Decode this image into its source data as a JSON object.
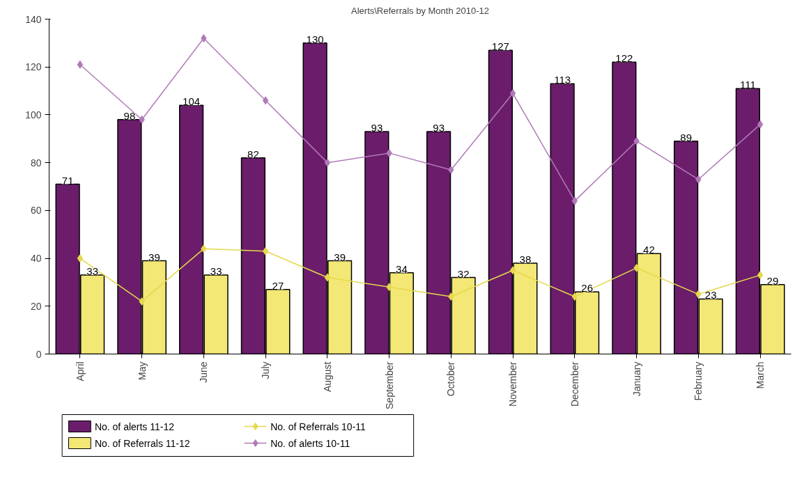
{
  "chart_data": {
    "type": "bar",
    "title": "Alerts\\Referrals by Month 2010-12",
    "categories": [
      "April",
      "May",
      "June",
      "July",
      "August",
      "September",
      "October",
      "November",
      "December",
      "January",
      "February",
      "March"
    ],
    "series": [
      {
        "name": "No. of alerts 11-12",
        "color": "#6b1d6b",
        "values": [
          71,
          98,
          104,
          82,
          130,
          93,
          93,
          127,
          113,
          122,
          89,
          111
        ],
        "value_labels": [
          "71",
          "98",
          "104",
          "82",
          "130",
          "93",
          "93",
          "127",
          "113",
          "122",
          "89",
          "111"
        ]
      },
      {
        "name": "No. of Referrals 11-12",
        "color": "#f3e776",
        "values": [
          33,
          39,
          33,
          27,
          39,
          34,
          32,
          38,
          26,
          42,
          23,
          29
        ],
        "value_labels": [
          "33",
          "39",
          "33",
          "27",
          "39",
          "34",
          "32",
          "38",
          "26",
          "42",
          "23",
          "29"
        ]
      },
      {
        "name": "No. of Referrals 10-11",
        "type": "line",
        "color": "#e6d84c",
        "marker": "diamond",
        "values": [
          40,
          22,
          44,
          43,
          32,
          28,
          24,
          35,
          24,
          36,
          25,
          33
        ]
      },
      {
        "name": "No. of alerts 10-11",
        "type": "line",
        "color": "#b07ab8",
        "marker": "diamond",
        "values": [
          121,
          98,
          132,
          106,
          80,
          84,
          77,
          109,
          64,
          89,
          73,
          96
        ]
      }
    ],
    "ylim": [
      0,
      140
    ],
    "yticks": [
      0,
      20,
      40,
      60,
      80,
      100,
      120,
      140
    ],
    "grid": false,
    "legend": "bottom left"
  }
}
